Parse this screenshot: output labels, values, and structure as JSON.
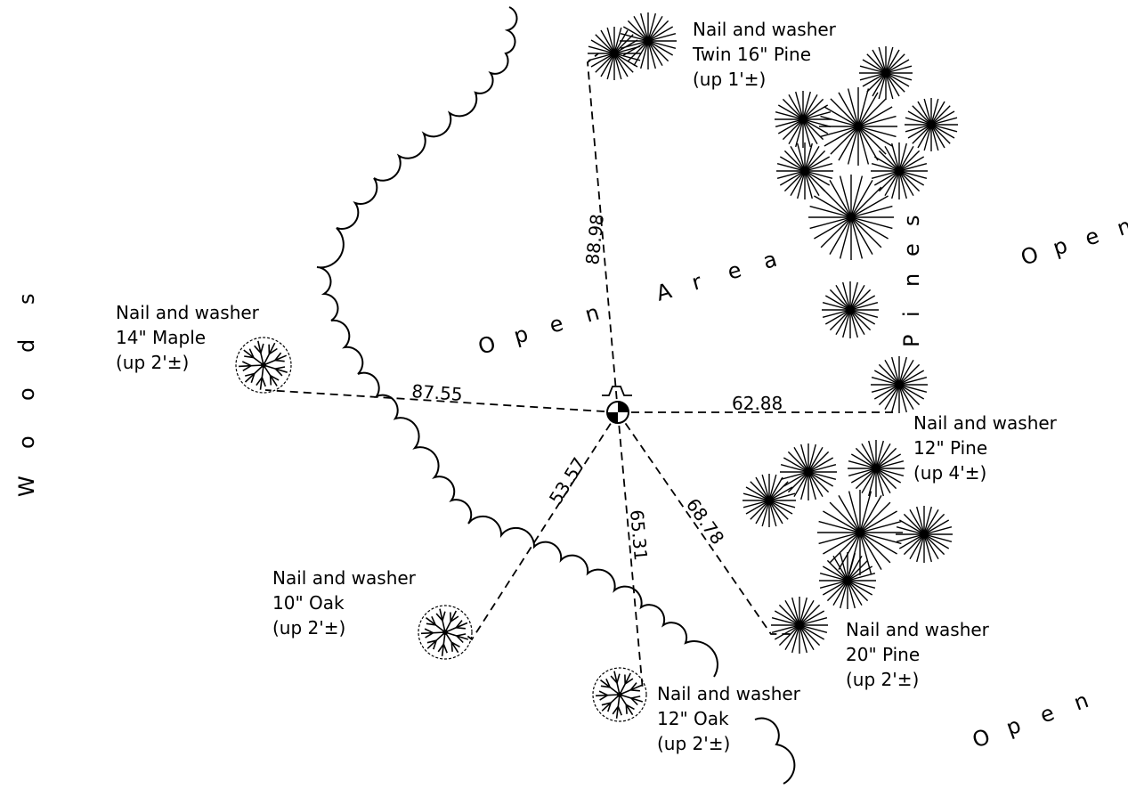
{
  "area_labels": {
    "woods": "Woods",
    "open_area": "Open Area",
    "pines": "Pines",
    "open_right": "Open",
    "open_bottom": "Open"
  },
  "ties": [
    {
      "id": "twin-pine",
      "distance": "88.98",
      "lines": [
        "Nail and washer",
        "Twin 16\" Pine",
        "(up 1'±)"
      ]
    },
    {
      "id": "maple",
      "distance": "87.55",
      "lines": [
        "Nail and washer",
        "14\" Maple",
        "(up 2'±)"
      ]
    },
    {
      "id": "pine-12",
      "distance": "62.88",
      "lines": [
        "Nail and washer",
        "12\" Pine",
        "(up 4'±)"
      ]
    },
    {
      "id": "oak-10",
      "distance": "53.57",
      "lines": [
        "Nail and washer",
        "10\" Oak",
        "(up 2'±)"
      ]
    },
    {
      "id": "oak-12",
      "distance": "65.31",
      "lines": [
        "Nail and washer",
        "12\" Oak",
        "(up 2'±)"
      ]
    },
    {
      "id": "pine-20",
      "distance": "68.78",
      "lines": [
        "Nail and washer",
        "20\" Pine",
        "(up 2'±)"
      ]
    }
  ],
  "symbols": {
    "control_point": "survey-control-point-icon",
    "conifer": "conifer-tree-icon",
    "deciduous": "deciduous-tree-icon",
    "tree_line": "woods-edge-scallop"
  }
}
